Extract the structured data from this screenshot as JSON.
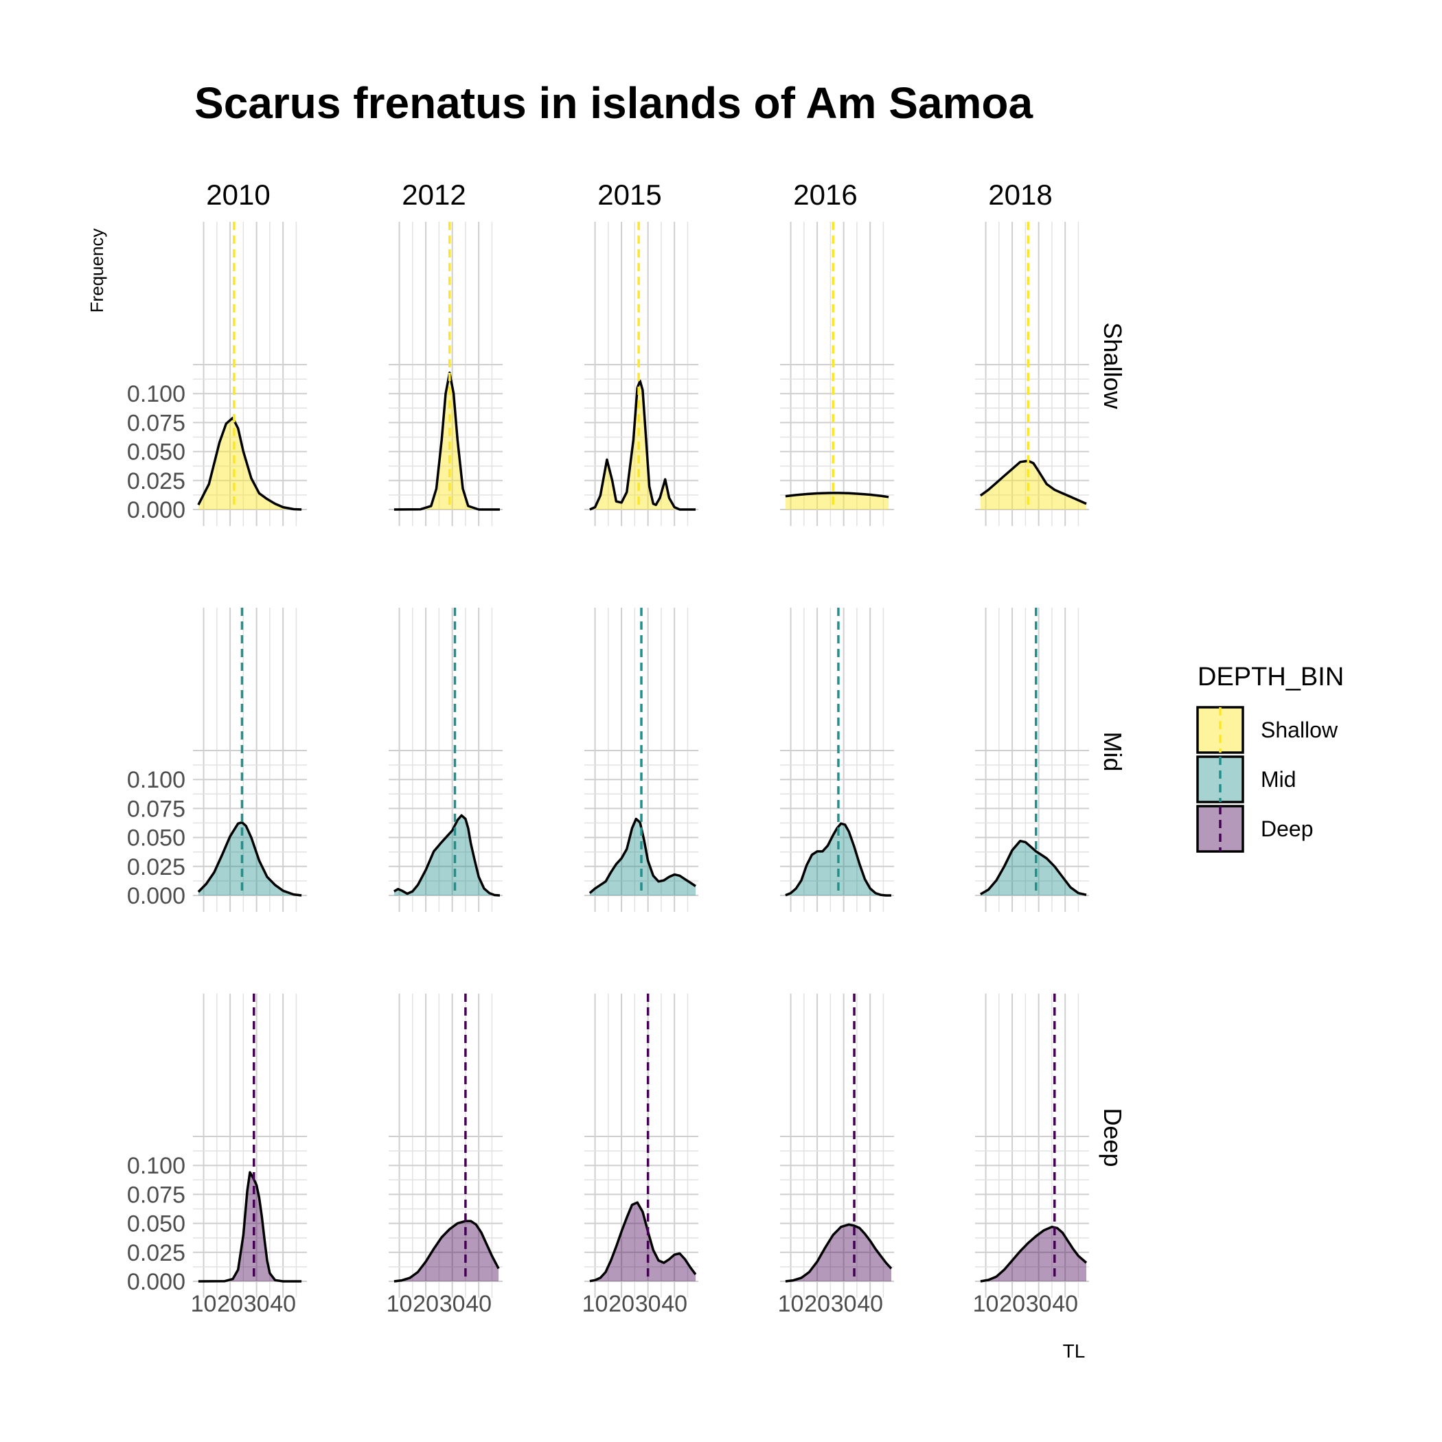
{
  "chart_data": {
    "type": "area",
    "title": "Scarus frenatus in islands of Am Samoa",
    "xlabel": "TL",
    "ylabel": "Frequency",
    "xlim": [
      7,
      48
    ],
    "ylim": [
      0,
      0.125
    ],
    "x_ticks": [
      10,
      20,
      30,
      40
    ],
    "x_tick_labels": [
      "10",
      "20",
      "30",
      "40"
    ],
    "y_ticks": [
      0,
      0.025,
      0.05,
      0.075,
      0.1
    ],
    "y_tick_labels": [
      "0.000",
      "0.025",
      "0.050",
      "0.075",
      "0.100"
    ],
    "grid": true,
    "facet_columns": [
      "2010",
      "2012",
      "2015",
      "2016",
      "2018"
    ],
    "facet_rows": [
      "Shallow",
      "Mid",
      "Deep"
    ],
    "legend": {
      "title": "DEPTH_BIN",
      "position": "right",
      "entries": [
        {
          "label": "Shallow",
          "color": "#FDE725"
        },
        {
          "label": "Mid",
          "color": "#21908C"
        },
        {
          "label": "Deep",
          "color": "#440154"
        }
      ]
    },
    "panels": [
      {
        "row": "Shallow",
        "col": "2010",
        "mean": 21.5,
        "x": [
          8,
          12,
          16,
          18.5,
          21,
          23,
          25,
          28,
          31,
          34,
          37,
          40,
          44,
          47
        ],
        "y": [
          0.004,
          0.022,
          0.058,
          0.074,
          0.079,
          0.07,
          0.05,
          0.027,
          0.014,
          0.009,
          0.005,
          0.002,
          0.0003,
          0
        ]
      },
      {
        "row": "Shallow",
        "col": "2012",
        "mean": 29,
        "x": [
          8,
          18,
          22,
          24,
          26,
          27.5,
          29,
          30.5,
          32,
          34,
          36,
          40,
          48
        ],
        "y": [
          0,
          0.0002,
          0.003,
          0.018,
          0.06,
          0.1,
          0.118,
          0.1,
          0.06,
          0.018,
          0.003,
          0,
          0
        ]
      },
      {
        "row": "Shallow",
        "col": "2015",
        "mean": 26.5,
        "x": [
          8,
          10,
          12,
          14.5,
          16.5,
          18,
          20,
          22,
          24.5,
          26,
          27,
          28,
          29,
          30.5,
          32,
          33,
          34.5,
          36.5,
          38,
          40,
          42,
          44,
          46,
          48
        ],
        "y": [
          0,
          0.002,
          0.012,
          0.043,
          0.025,
          0.007,
          0.006,
          0.015,
          0.06,
          0.105,
          0.111,
          0.103,
          0.07,
          0.02,
          0.005,
          0.004,
          0.01,
          0.026,
          0.01,
          0.002,
          0,
          0,
          0,
          0
        ]
      },
      {
        "row": "Shallow",
        "col": "2016",
        "mean": 26,
        "x": [
          8,
          12,
          16,
          20,
          24,
          26,
          28,
          32,
          36,
          40,
          44,
          47
        ],
        "y": [
          0.0115,
          0.0125,
          0.0133,
          0.0139,
          0.0142,
          0.0143,
          0.0143,
          0.0141,
          0.0135,
          0.0128,
          0.0118,
          0.0108
        ]
      },
      {
        "row": "Shallow",
        "col": "2018",
        "mean": 26,
        "x": [
          8,
          11,
          14,
          17,
          20,
          23,
          26,
          28,
          30,
          33,
          36,
          39,
          42,
          45,
          48
        ],
        "y": [
          0.012,
          0.017,
          0.023,
          0.029,
          0.035,
          0.041,
          0.042,
          0.04,
          0.033,
          0.022,
          0.017,
          0.014,
          0.011,
          0.008,
          0.005
        ]
      },
      {
        "row": "Mid",
        "col": "2010",
        "mean": 24.5,
        "x": [
          8,
          11,
          14,
          17,
          20,
          23,
          24.5,
          26,
          28,
          31,
          34,
          37,
          40,
          44,
          47
        ],
        "y": [
          0.003,
          0.01,
          0.02,
          0.035,
          0.051,
          0.062,
          0.063,
          0.06,
          0.05,
          0.03,
          0.016,
          0.009,
          0.004,
          0.0008,
          0
        ]
      },
      {
        "row": "Mid",
        "col": "2012",
        "mean": 31,
        "x": [
          8,
          9.5,
          11,
          13,
          15,
          17,
          20,
          23,
          26,
          28,
          30,
          32,
          33.5,
          35,
          36,
          37,
          38.5,
          40,
          42,
          44,
          46,
          48
        ],
        "y": [
          0.0035,
          0.0055,
          0.004,
          0.0015,
          0.0035,
          0.009,
          0.022,
          0.038,
          0.046,
          0.051,
          0.056,
          0.065,
          0.069,
          0.066,
          0.058,
          0.045,
          0.03,
          0.016,
          0.006,
          0.002,
          0.0003,
          0
        ]
      },
      {
        "row": "Mid",
        "col": "2015",
        "mean": 27.5,
        "x": [
          8,
          10,
          12,
          14,
          16,
          18,
          20,
          22,
          24,
          25.5,
          27,
          28.5,
          30,
          32,
          34,
          36,
          38,
          40,
          42,
          44,
          46,
          48
        ],
        "y": [
          0.002,
          0.006,
          0.009,
          0.012,
          0.02,
          0.027,
          0.032,
          0.04,
          0.058,
          0.066,
          0.063,
          0.048,
          0.03,
          0.017,
          0.012,
          0.013,
          0.016,
          0.018,
          0.017,
          0.014,
          0.011,
          0.008
        ]
      },
      {
        "row": "Mid",
        "col": "2016",
        "mean": 28,
        "x": [
          8,
          10,
          12,
          14,
          16,
          18,
          20,
          22,
          24,
          26,
          27.5,
          29,
          30.5,
          32,
          34,
          36,
          38,
          40,
          42,
          44,
          46,
          48
        ],
        "y": [
          0.0002,
          0.002,
          0.006,
          0.013,
          0.026,
          0.035,
          0.038,
          0.038,
          0.043,
          0.052,
          0.058,
          0.062,
          0.061,
          0.055,
          0.042,
          0.027,
          0.014,
          0.006,
          0.002,
          0.0005,
          0,
          0
        ]
      },
      {
        "row": "Mid",
        "col": "2018",
        "mean": 29,
        "x": [
          8,
          11,
          14,
          17,
          20,
          23,
          25,
          27,
          29,
          31,
          33,
          36,
          39,
          42,
          45,
          48
        ],
        "y": [
          0.001,
          0.005,
          0.013,
          0.025,
          0.039,
          0.047,
          0.046,
          0.042,
          0.038,
          0.035,
          0.032,
          0.025,
          0.016,
          0.007,
          0.002,
          0.0005
        ]
      },
      {
        "row": "Deep",
        "col": "2010",
        "mean": 29,
        "x": [
          8,
          18,
          21,
          23,
          25,
          26.5,
          27.5,
          29,
          30,
          31,
          32,
          33,
          34,
          35,
          37,
          40,
          44,
          47
        ],
        "y": [
          0,
          0.0002,
          0.002,
          0.01,
          0.04,
          0.078,
          0.094,
          0.088,
          0.083,
          0.072,
          0.056,
          0.036,
          0.018,
          0.007,
          0.001,
          0,
          0,
          0
        ]
      },
      {
        "row": "Deep",
        "col": "2012",
        "mean": 35,
        "x": [
          8,
          11,
          14,
          17,
          20,
          23,
          26,
          29,
          32,
          35,
          37,
          39,
          41,
          43,
          45,
          47.5
        ],
        "y": [
          0,
          0.0008,
          0.003,
          0.008,
          0.017,
          0.028,
          0.038,
          0.045,
          0.05,
          0.052,
          0.052,
          0.049,
          0.042,
          0.032,
          0.022,
          0.011
        ]
      },
      {
        "row": "Deep",
        "col": "2015",
        "mean": 30,
        "x": [
          8,
          10,
          12,
          14,
          16,
          18,
          20,
          22,
          24,
          26,
          28,
          30,
          32,
          34,
          36,
          38,
          40,
          42,
          44,
          46,
          48
        ],
        "y": [
          0.0002,
          0.001,
          0.003,
          0.008,
          0.018,
          0.03,
          0.043,
          0.055,
          0.066,
          0.068,
          0.06,
          0.043,
          0.027,
          0.018,
          0.016,
          0.019,
          0.023,
          0.024,
          0.019,
          0.012,
          0.006
        ]
      },
      {
        "row": "Deep",
        "col": "2016",
        "mean": 34,
        "x": [
          8,
          11,
          14,
          17,
          20,
          23,
          26,
          29,
          32,
          34,
          36,
          38,
          40,
          42,
          44,
          46,
          48
        ],
        "y": [
          0,
          0.0008,
          0.003,
          0.008,
          0.017,
          0.029,
          0.04,
          0.047,
          0.049,
          0.048,
          0.046,
          0.041,
          0.035,
          0.028,
          0.022,
          0.016,
          0.011
        ]
      },
      {
        "row": "Deep",
        "col": "2018",
        "mean": 36,
        "x": [
          8,
          11,
          14,
          17,
          20,
          23,
          26,
          29,
          32,
          35,
          37,
          39,
          41,
          43,
          45,
          48
        ],
        "y": [
          0,
          0.0012,
          0.004,
          0.01,
          0.018,
          0.026,
          0.033,
          0.039,
          0.044,
          0.047,
          0.046,
          0.042,
          0.035,
          0.028,
          0.022,
          0.016
        ]
      }
    ]
  }
}
